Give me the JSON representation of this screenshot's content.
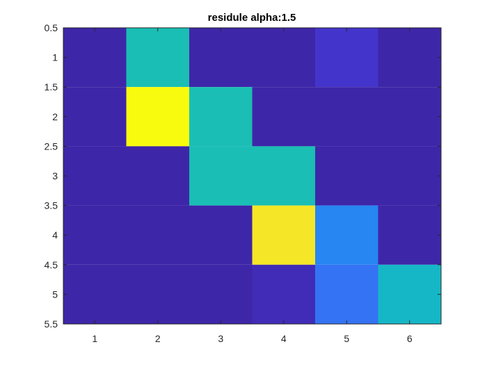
{
  "chart_data": {
    "type": "heatmap",
    "title": "residule alpha:1.5",
    "xlabel": "",
    "ylabel": "",
    "x": [
      1,
      2,
      3,
      4,
      5,
      6
    ],
    "y": [
      1,
      2,
      3,
      4,
      5
    ],
    "xlim": [
      0.5,
      6.5
    ],
    "ylim": [
      0.5,
      5.5
    ],
    "y_direction": "top-to-bottom",
    "x_tick_labels": [
      "1",
      "2",
      "3",
      "4",
      "5",
      "6"
    ],
    "y_tick_labels": [
      "0.5",
      "1",
      "1.5",
      "2",
      "2.5",
      "3",
      "3.5",
      "4",
      "4.5",
      "5",
      "5.5"
    ],
    "colormap": "parula",
    "clim": [
      0,
      1
    ],
    "grid": false,
    "values": [
      [
        0.0,
        0.5,
        0.0,
        0.0,
        0.05,
        0.0
      ],
      [
        0.0,
        1.0,
        0.5,
        0.0,
        0.0,
        0.0
      ],
      [
        0.0,
        0.0,
        0.5,
        0.5,
        0.0,
        0.0
      ],
      [
        0.0,
        0.0,
        0.0,
        0.95,
        0.25,
        0.0
      ],
      [
        0.0,
        0.0,
        0.0,
        0.02,
        0.2,
        0.45
      ]
    ]
  }
}
